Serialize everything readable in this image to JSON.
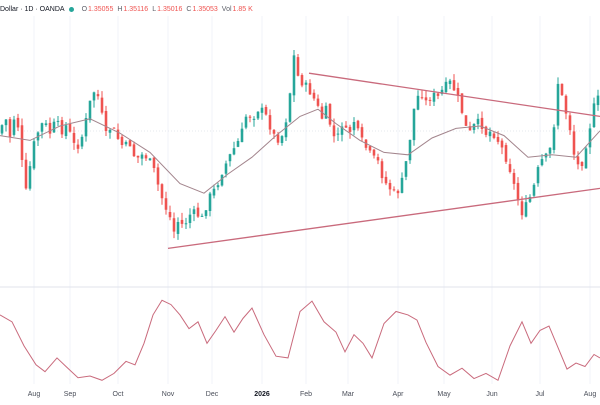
{
  "legend": {
    "symbol": "Dollar · 1D · OANDA",
    "open_label": "O",
    "open_value": "1.35055",
    "high_label": "H",
    "high_value": "1.35116",
    "low_label": "L",
    "low_value": "1.35016",
    "close_label": "C",
    "close_value": "1.35053",
    "vol_label": "Vol",
    "vol_value": "1.85 K"
  },
  "colors": {
    "up": "#26a69a",
    "down": "#ef5350",
    "ma": "#a3858d",
    "trendline": "#c96a7c",
    "oscillator": "#c96a7c",
    "grid": "#f0f3fa",
    "axis_text": "#4a4e59",
    "year_text": "#131722"
  },
  "chart_data": [
    {
      "type": "candlestick",
      "title": "",
      "x_ticks": [
        "Aug",
        "Sep",
        "Oct",
        "Nov",
        "Dec",
        "2026",
        "Feb",
        "Mar",
        "Apr",
        "May",
        "Jun",
        "Jul",
        "Aug"
      ],
      "year_tick": "2026",
      "ylim": [
        1.0,
        0.0
      ],
      "close_path": [
        [
          0,
          0.43
        ],
        [
          0.008,
          0.35
        ],
        [
          0.016,
          0.45
        ],
        [
          0.024,
          0.36
        ],
        [
          0.033,
          0.42
        ],
        [
          0.041,
          0.71
        ],
        [
          0.048,
          0.6
        ],
        [
          0.056,
          0.48
        ],
        [
          0.064,
          0.42
        ],
        [
          0.073,
          0.38
        ],
        [
          0.083,
          0.43
        ],
        [
          0.093,
          0.38
        ],
        [
          0.103,
          0.42
        ],
        [
          0.113,
          0.39
        ],
        [
          0.12,
          0.47
        ],
        [
          0.128,
          0.49
        ],
        [
          0.136,
          0.45
        ],
        [
          0.145,
          0.36
        ],
        [
          0.152,
          0.28
        ],
        [
          0.16,
          0.24
        ],
        [
          0.168,
          0.33
        ],
        [
          0.176,
          0.44
        ],
        [
          0.186,
          0.4
        ],
        [
          0.196,
          0.45
        ],
        [
          0.206,
          0.49
        ],
        [
          0.216,
          0.47
        ],
        [
          0.226,
          0.54
        ],
        [
          0.236,
          0.52
        ],
        [
          0.246,
          0.53
        ],
        [
          0.256,
          0.58
        ],
        [
          0.266,
          0.67
        ],
        [
          0.274,
          0.73
        ],
        [
          0.282,
          0.77
        ],
        [
          0.29,
          0.84
        ],
        [
          0.298,
          0.79
        ],
        [
          0.306,
          0.82
        ],
        [
          0.316,
          0.77
        ],
        [
          0.326,
          0.76
        ],
        [
          0.336,
          0.79
        ],
        [
          0.344,
          0.73
        ],
        [
          0.352,
          0.68
        ],
        [
          0.36,
          0.66
        ],
        [
          0.368,
          0.6
        ],
        [
          0.376,
          0.56
        ],
        [
          0.386,
          0.51
        ],
        [
          0.396,
          0.47
        ],
        [
          0.404,
          0.42
        ],
        [
          0.412,
          0.34
        ],
        [
          0.42,
          0.37
        ],
        [
          0.43,
          0.33
        ],
        [
          0.44,
          0.34
        ],
        [
          0.45,
          0.4
        ],
        [
          0.46,
          0.46
        ],
        [
          0.47,
          0.44
        ],
        [
          0.478,
          0.36
        ],
        [
          0.486,
          0.21
        ],
        [
          0.49,
          0.11
        ],
        [
          0.496,
          0.19
        ],
        [
          0.504,
          0.22
        ],
        [
          0.512,
          0.24
        ],
        [
          0.52,
          0.27
        ],
        [
          0.528,
          0.31
        ],
        [
          0.536,
          0.37
        ],
        [
          0.544,
          0.33
        ],
        [
          0.552,
          0.41
        ],
        [
          0.56,
          0.47
        ],
        [
          0.57,
          0.39
        ],
        [
          0.58,
          0.44
        ],
        [
          0.59,
          0.38
        ],
        [
          0.6,
          0.45
        ],
        [
          0.61,
          0.49
        ],
        [
          0.62,
          0.53
        ],
        [
          0.63,
          0.55
        ],
        [
          0.64,
          0.63
        ],
        [
          0.65,
          0.66
        ],
        [
          0.66,
          0.69
        ],
        [
          0.67,
          0.63
        ],
        [
          0.68,
          0.51
        ],
        [
          0.69,
          0.33
        ],
        [
          0.7,
          0.25
        ],
        [
          0.71,
          0.3
        ],
        [
          0.72,
          0.27
        ],
        [
          0.73,
          0.28
        ],
        [
          0.74,
          0.24
        ],
        [
          0.75,
          0.22
        ],
        [
          0.76,
          0.26
        ],
        [
          0.77,
          0.34
        ],
        [
          0.78,
          0.44
        ],
        [
          0.79,
          0.4
        ],
        [
          0.8,
          0.38
        ],
        [
          0.81,
          0.43
        ],
        [
          0.82,
          0.42
        ],
        [
          0.83,
          0.46
        ],
        [
          0.84,
          0.51
        ],
        [
          0.85,
          0.58
        ],
        [
          0.86,
          0.68
        ],
        [
          0.87,
          0.76
        ],
        [
          0.88,
          0.72
        ],
        [
          0.89,
          0.65
        ],
        [
          0.9,
          0.55
        ],
        [
          0.91,
          0.53
        ],
        [
          0.92,
          0.48
        ],
        [
          0.93,
          0.22
        ],
        [
          0.94,
          0.31
        ],
        [
          0.95,
          0.41
        ],
        [
          0.96,
          0.57
        ],
        [
          0.97,
          0.55
        ],
        [
          0.98,
          0.44
        ],
        [
          0.99,
          0.32
        ],
        [
          1.0,
          0.27
        ]
      ],
      "moving_average": [
        [
          0,
          0.44
        ],
        [
          0.05,
          0.46
        ],
        [
          0.1,
          0.4
        ],
        [
          0.15,
          0.37
        ],
        [
          0.2,
          0.43
        ],
        [
          0.25,
          0.51
        ],
        [
          0.3,
          0.64
        ],
        [
          0.34,
          0.68
        ],
        [
          0.38,
          0.6
        ],
        [
          0.42,
          0.53
        ],
        [
          0.46,
          0.44
        ],
        [
          0.5,
          0.36
        ],
        [
          0.53,
          0.33
        ],
        [
          0.56,
          0.39
        ],
        [
          0.6,
          0.46
        ],
        [
          0.64,
          0.51
        ],
        [
          0.68,
          0.52
        ],
        [
          0.72,
          0.45
        ],
        [
          0.76,
          0.41
        ],
        [
          0.8,
          0.4
        ],
        [
          0.84,
          0.44
        ],
        [
          0.88,
          0.53
        ],
        [
          0.92,
          0.52
        ],
        [
          0.96,
          0.53
        ],
        [
          1.0,
          0.42
        ]
      ],
      "trendlines": [
        {
          "from": [
            0.515,
            0.18
          ],
          "to": [
            1.0,
            0.36
          ]
        },
        {
          "from": [
            0.28,
            0.91
          ],
          "to": [
            1.0,
            0.66
          ]
        }
      ]
    },
    {
      "type": "line",
      "title": "",
      "ylim": [
        0,
        1
      ],
      "values": [
        [
          0,
          0.78
        ],
        [
          0.02,
          0.7
        ],
        [
          0.04,
          0.42
        ],
        [
          0.06,
          0.2
        ],
        [
          0.075,
          0.12
        ],
        [
          0.095,
          0.28
        ],
        [
          0.11,
          0.18
        ],
        [
          0.13,
          0.05
        ],
        [
          0.15,
          0.07
        ],
        [
          0.17,
          0.02
        ],
        [
          0.19,
          0.1
        ],
        [
          0.21,
          0.24
        ],
        [
          0.225,
          0.2
        ],
        [
          0.24,
          0.45
        ],
        [
          0.255,
          0.78
        ],
        [
          0.27,
          0.95
        ],
        [
          0.285,
          0.9
        ],
        [
          0.3,
          0.78
        ],
        [
          0.315,
          0.62
        ],
        [
          0.33,
          0.7
        ],
        [
          0.345,
          0.45
        ],
        [
          0.36,
          0.6
        ],
        [
          0.375,
          0.76
        ],
        [
          0.39,
          0.58
        ],
        [
          0.405,
          0.74
        ],
        [
          0.42,
          0.86
        ],
        [
          0.44,
          0.55
        ],
        [
          0.46,
          0.3
        ],
        [
          0.48,
          0.28
        ],
        [
          0.5,
          0.82
        ],
        [
          0.52,
          0.94
        ],
        [
          0.54,
          0.7
        ],
        [
          0.56,
          0.58
        ],
        [
          0.575,
          0.35
        ],
        [
          0.59,
          0.55
        ],
        [
          0.605,
          0.45
        ],
        [
          0.62,
          0.28
        ],
        [
          0.64,
          0.68
        ],
        [
          0.66,
          0.82
        ],
        [
          0.68,
          0.78
        ],
        [
          0.695,
          0.72
        ],
        [
          0.71,
          0.46
        ],
        [
          0.73,
          0.18
        ],
        [
          0.75,
          0.08
        ],
        [
          0.77,
          0.16
        ],
        [
          0.79,
          0.04
        ],
        [
          0.81,
          0.1
        ],
        [
          0.83,
          0.02
        ],
        [
          0.85,
          0.42
        ],
        [
          0.87,
          0.7
        ],
        [
          0.885,
          0.45
        ],
        [
          0.9,
          0.6
        ],
        [
          0.915,
          0.65
        ],
        [
          0.93,
          0.4
        ],
        [
          0.945,
          0.15
        ],
        [
          0.96,
          0.22
        ],
        [
          0.975,
          0.18
        ],
        [
          0.99,
          0.32
        ],
        [
          1.0,
          0.28
        ]
      ]
    }
  ]
}
